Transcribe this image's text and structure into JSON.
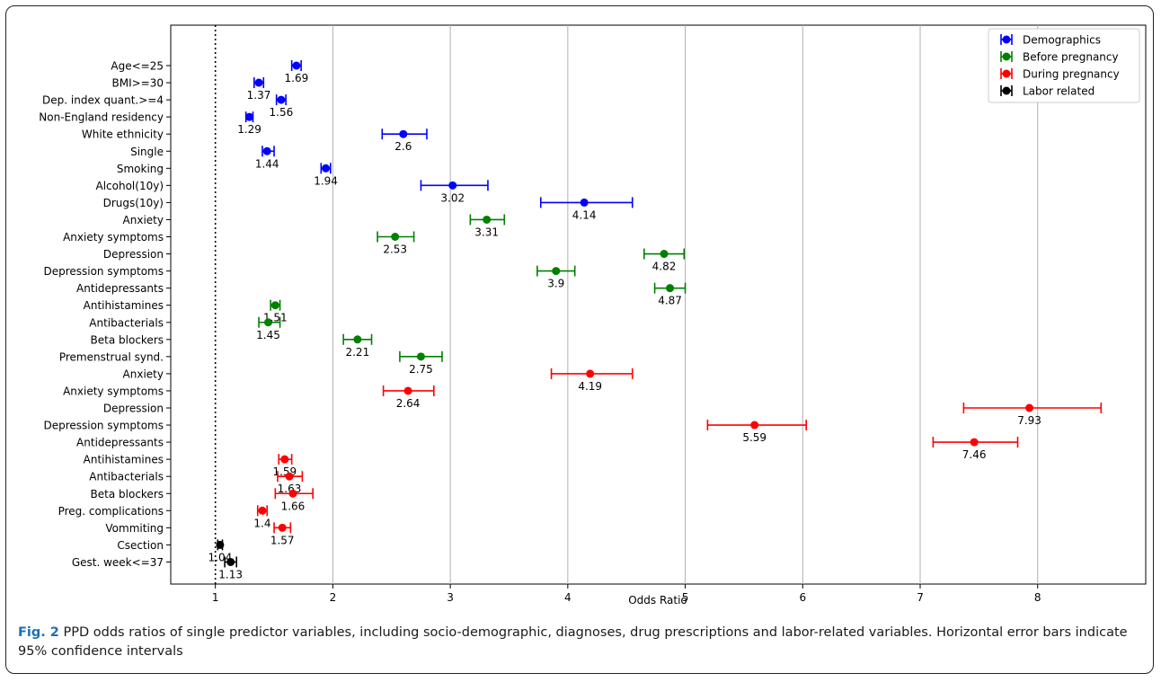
{
  "chart_data": {
    "type": "scatter",
    "orientation": "horizontal-error-bars",
    "xlabel": "Odds Ratio",
    "ylabel": "",
    "xlim": [
      0.62,
      8.92
    ],
    "xticks": [
      1,
      2,
      3,
      4,
      5,
      6,
      7,
      8
    ],
    "grid": "vertical",
    "reference_line_x": 1,
    "legend_position": "top-right",
    "series": [
      {
        "name": "Demographics",
        "color": "#0000ff"
      },
      {
        "name": "Before pregnancy",
        "color": "#008000"
      },
      {
        "name": "During pregnancy",
        "color": "#ff0000"
      },
      {
        "name": "Labor related",
        "color": "#000000"
      }
    ],
    "points": [
      {
        "label": "Age<=25",
        "series": 0,
        "value": 1.69,
        "value_label": "1.69",
        "ci": [
          1.65,
          1.73
        ]
      },
      {
        "label": "BMI>=30",
        "series": 0,
        "value": 1.37,
        "value_label": "1.37",
        "ci": [
          1.33,
          1.41
        ]
      },
      {
        "label": "Dep. index quant.>=4",
        "series": 0,
        "value": 1.56,
        "value_label": "1.56",
        "ci": [
          1.52,
          1.6
        ]
      },
      {
        "label": "Non-England residency",
        "series": 0,
        "value": 1.29,
        "value_label": "1.29",
        "ci": [
          1.26,
          1.32
        ]
      },
      {
        "label": "White ethnicity",
        "series": 0,
        "value": 2.6,
        "value_label": "2.6",
        "ci": [
          2.42,
          2.8
        ]
      },
      {
        "label": "Single",
        "series": 0,
        "value": 1.44,
        "value_label": "1.44",
        "ci": [
          1.4,
          1.5
        ]
      },
      {
        "label": "Smoking",
        "series": 0,
        "value": 1.94,
        "value_label": "1.94",
        "ci": [
          1.9,
          1.98
        ]
      },
      {
        "label": "Alcohol(10y)",
        "series": 0,
        "value": 3.02,
        "value_label": "3.02",
        "ci": [
          2.75,
          3.32
        ]
      },
      {
        "label": "Drugs(10y)",
        "series": 0,
        "value": 4.14,
        "value_label": "4.14",
        "ci": [
          3.77,
          4.55
        ]
      },
      {
        "label": "Anxiety",
        "series": 1,
        "value": 3.31,
        "value_label": "3.31",
        "ci": [
          3.17,
          3.46
        ]
      },
      {
        "label": "Anxiety symptoms",
        "series": 1,
        "value": 2.53,
        "value_label": "2.53",
        "ci": [
          2.38,
          2.69
        ]
      },
      {
        "label": "Depression",
        "series": 1,
        "value": 4.82,
        "value_label": "4.82",
        "ci": [
          4.65,
          4.99
        ]
      },
      {
        "label": "Depression symptoms",
        "series": 1,
        "value": 3.9,
        "value_label": "3.9",
        "ci": [
          3.74,
          4.06
        ]
      },
      {
        "label": "Antidepressants",
        "series": 1,
        "value": 4.87,
        "value_label": "4.87",
        "ci": [
          4.74,
          5.0
        ]
      },
      {
        "label": "Antihistamines",
        "series": 1,
        "value": 1.51,
        "value_label": "1.51",
        "ci": [
          1.47,
          1.55
        ]
      },
      {
        "label": "Antibacterials",
        "series": 1,
        "value": 1.45,
        "value_label": "1.45",
        "ci": [
          1.37,
          1.55
        ]
      },
      {
        "label": "Beta blockers",
        "series": 1,
        "value": 2.21,
        "value_label": "2.21",
        "ci": [
          2.09,
          2.33
        ]
      },
      {
        "label": "Premenstrual synd.",
        "series": 1,
        "value": 2.75,
        "value_label": "2.75",
        "ci": [
          2.57,
          2.93
        ]
      },
      {
        "label": "Anxiety",
        "series": 2,
        "value": 4.19,
        "value_label": "4.19",
        "ci": [
          3.86,
          4.55
        ]
      },
      {
        "label": "Anxiety symptoms",
        "series": 2,
        "value": 2.64,
        "value_label": "2.64",
        "ci": [
          2.43,
          2.86
        ]
      },
      {
        "label": "Depression",
        "series": 2,
        "value": 7.93,
        "value_label": "7.93",
        "ci": [
          7.37,
          8.54
        ]
      },
      {
        "label": "Depression symptoms",
        "series": 2,
        "value": 5.59,
        "value_label": "5.59",
        "ci": [
          5.19,
          6.03
        ]
      },
      {
        "label": "Antidepressants",
        "series": 2,
        "value": 7.46,
        "value_label": "7.46",
        "ci": [
          7.11,
          7.83
        ]
      },
      {
        "label": "Antihistamines",
        "series": 2,
        "value": 1.59,
        "value_label": "1.59",
        "ci": [
          1.54,
          1.65
        ]
      },
      {
        "label": "Antibacterials",
        "series": 2,
        "value": 1.63,
        "value_label": "1.63",
        "ci": [
          1.53,
          1.74
        ]
      },
      {
        "label": "Beta blockers",
        "series": 2,
        "value": 1.66,
        "value_label": "1.66",
        "ci": [
          1.51,
          1.83
        ]
      },
      {
        "label": "Preg. complications",
        "series": 2,
        "value": 1.4,
        "value_label": "1.4",
        "ci": [
          1.36,
          1.44
        ]
      },
      {
        "label": "Vommiting",
        "series": 2,
        "value": 1.57,
        "value_label": "1.57",
        "ci": [
          1.5,
          1.64
        ]
      },
      {
        "label": "Csection",
        "series": 3,
        "value": 1.04,
        "value_label": "1.04",
        "ci": [
          1.02,
          1.06
        ]
      },
      {
        "label": "Gest. week<=37",
        "series": 3,
        "value": 1.13,
        "value_label": "1.13",
        "ci": [
          1.08,
          1.18
        ]
      }
    ]
  },
  "caption": {
    "fig_label": "Fig. 2",
    "text": "PPD odds ratios of single predictor variables, including socio-demographic, diagnoses, drug prescriptions and labor-related variables. Horizontal error bars indicate 95% confidence intervals"
  }
}
